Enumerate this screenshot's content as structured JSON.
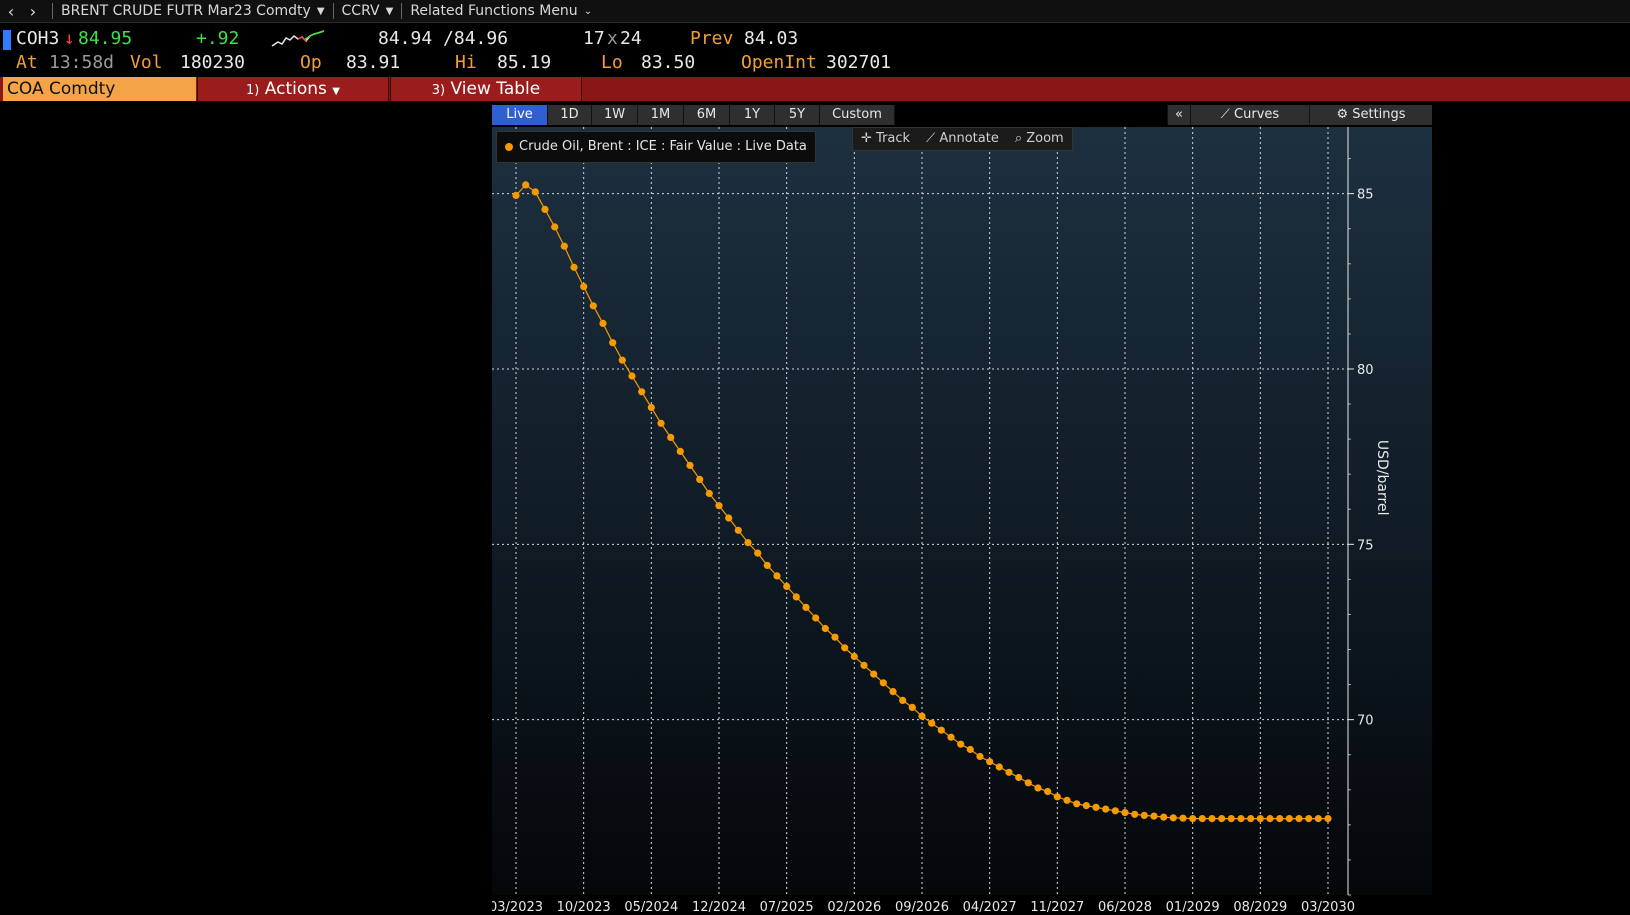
{
  "nav": {
    "security": "BRENT CRUDE FUTR Mar23 Comdty",
    "function": "CCRV",
    "related": "Related Functions Menu"
  },
  "quote": {
    "ticker": "COH3",
    "down_arrow": "↓",
    "last": "84.95",
    "change": "+.92",
    "bid_ask": "84.94 /84.96",
    "size_bid": "17",
    "size_x": "x",
    "size_ask": "24",
    "prev_label": "Prev",
    "prev": "84.03",
    "at_label": "At",
    "time": "13:58d",
    "vol_label": "Vol",
    "vol": "180230",
    "op_label": "Op",
    "op": "83.91",
    "hi_label": "Hi",
    "hi": "85.19",
    "lo_label": "Lo",
    "lo": "83.50",
    "oi_label": "OpenInt",
    "oi": "302701"
  },
  "fbar": {
    "ticker": "COA Comdty",
    "actions_num": "1)",
    "actions": "Actions",
    "view_num": "3)",
    "view": "View Table"
  },
  "tabs": [
    "Live",
    "1D",
    "1W",
    "1M",
    "6M",
    "1Y",
    "5Y",
    "Custom"
  ],
  "active_tab": "Live",
  "tools": {
    "collapse": "«",
    "curves": "Curves",
    "settings": "Settings",
    "track": "Track",
    "annotate": "Annotate",
    "zoom": "Zoom"
  },
  "legend": "Crude Oil, Brent : ICE : Fair Value : Live Data",
  "colors": {
    "series": "#f59a00",
    "function_bar": "#8a1717",
    "ticker_bg": "#f3a449",
    "active_tab": "#2f5fd0"
  },
  "chart_data": {
    "type": "line",
    "title": "",
    "xlabel": "",
    "ylabel": "USD/barrel",
    "x_tick_labels": [
      "03/2023",
      "10/2023",
      "05/2024",
      "12/2024",
      "07/2025",
      "02/2026",
      "09/2026",
      "04/2027",
      "11/2027",
      "06/2028",
      "01/2029",
      "08/2029",
      "03/2030"
    ],
    "y_ticks": [
      70,
      75,
      80,
      85
    ],
    "ylim": [
      65,
      86.9
    ],
    "grid": true,
    "x_start": "03/2023",
    "x_end": "03/2030",
    "series": [
      {
        "name": "Crude Oil, Brent : ICE : Fair Value : Live Data",
        "values": [
          84.95,
          85.25,
          85.05,
          84.55,
          84.05,
          83.5,
          82.9,
          82.35,
          81.8,
          81.3,
          80.75,
          80.25,
          79.8,
          79.35,
          78.9,
          78.45,
          78.05,
          77.65,
          77.25,
          76.85,
          76.45,
          76.1,
          75.75,
          75.4,
          75.05,
          74.75,
          74.4,
          74.1,
          73.8,
          73.5,
          73.2,
          72.9,
          72.6,
          72.35,
          72.05,
          71.8,
          71.55,
          71.3,
          71.05,
          70.8,
          70.55,
          70.35,
          70.1,
          69.9,
          69.7,
          69.5,
          69.3,
          69.15,
          68.95,
          68.8,
          68.65,
          68.5,
          68.35,
          68.2,
          68.05,
          67.95,
          67.8,
          67.7,
          67.6,
          67.55,
          67.5,
          67.45,
          67.4,
          67.35,
          67.3,
          67.27,
          67.25,
          67.22,
          67.2,
          67.19,
          67.18,
          67.18,
          67.18,
          67.18,
          67.18,
          67.18,
          67.18,
          67.18,
          67.18,
          67.18,
          67.18,
          67.18,
          67.18,
          67.18,
          67.18
        ]
      }
    ]
  }
}
